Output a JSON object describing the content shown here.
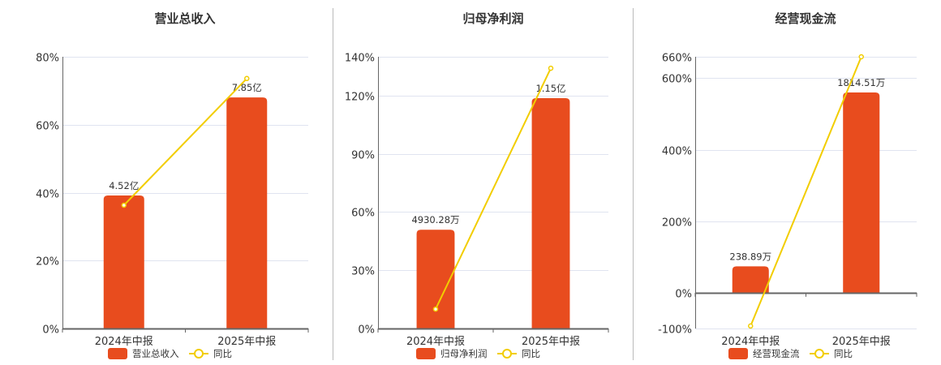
{
  "colors": {
    "bar": "#e84c1e",
    "line": "#f2cd00",
    "grid": "#e0e4f0",
    "axis": "#666666",
    "divider": "#bbbbbb"
  },
  "chart_data": [
    {
      "type": "bar+line",
      "title": "营业总收入",
      "categories": [
        "2024年中报",
        "2025年中报"
      ],
      "bar_series": {
        "name": "营业总收入",
        "values": [
          4.52,
          7.85
        ],
        "unit": "亿",
        "labels": [
          "4.52亿",
          "7.85亿"
        ],
        "axis_max": 9.23
      },
      "line_series": {
        "name": "同比",
        "values": [
          36.3,
          73.6
        ],
        "unit": "%"
      },
      "yticks": [
        0,
        20,
        40,
        60,
        80
      ],
      "ytick_labels": [
        "0%",
        "20%",
        "40%",
        "60%",
        "80%"
      ],
      "ylim": [
        0,
        80
      ],
      "grid": true,
      "legend": "bottom"
    },
    {
      "type": "bar+line",
      "title": "归母净利润",
      "categories": [
        "2024年中报",
        "2025年中报"
      ],
      "bar_series": {
        "name": "归母净利润",
        "values": [
          4930.28,
          11500
        ],
        "unit": "万",
        "labels": [
          "4930.28万",
          "1.15亿"
        ],
        "axis_max": 13565
      },
      "line_series": {
        "name": "同比",
        "values": [
          10.0,
          134.1
        ],
        "unit": "%"
      },
      "yticks": [
        0,
        30,
        60,
        90,
        120,
        140
      ],
      "ytick_labels": [
        "0%",
        "30%",
        "60%",
        "90%",
        "120%",
        "140%"
      ],
      "ylim": [
        0,
        140
      ],
      "grid": true,
      "legend": "bottom"
    },
    {
      "type": "bar+line",
      "title": "经营现金流",
      "categories": [
        "2024年中报",
        "2025年中报"
      ],
      "bar_series": {
        "name": "经营现金流",
        "values": [
          238.89,
          1814.51
        ],
        "unit": "万",
        "labels": [
          "238.89万",
          "1814.51万"
        ],
        "axis_max": 2138
      },
      "line_series": {
        "name": "同比",
        "values": [
          -93,
          660
        ],
        "unit": "%"
      },
      "yticks": [
        -100,
        0,
        200,
        400,
        600,
        660
      ],
      "ytick_labels": [
        "-100%",
        "0%",
        "200%",
        "400%",
        "600%",
        "660%"
      ],
      "ylim": [
        -100,
        660
      ],
      "grid": true,
      "legend": "bottom"
    }
  ]
}
